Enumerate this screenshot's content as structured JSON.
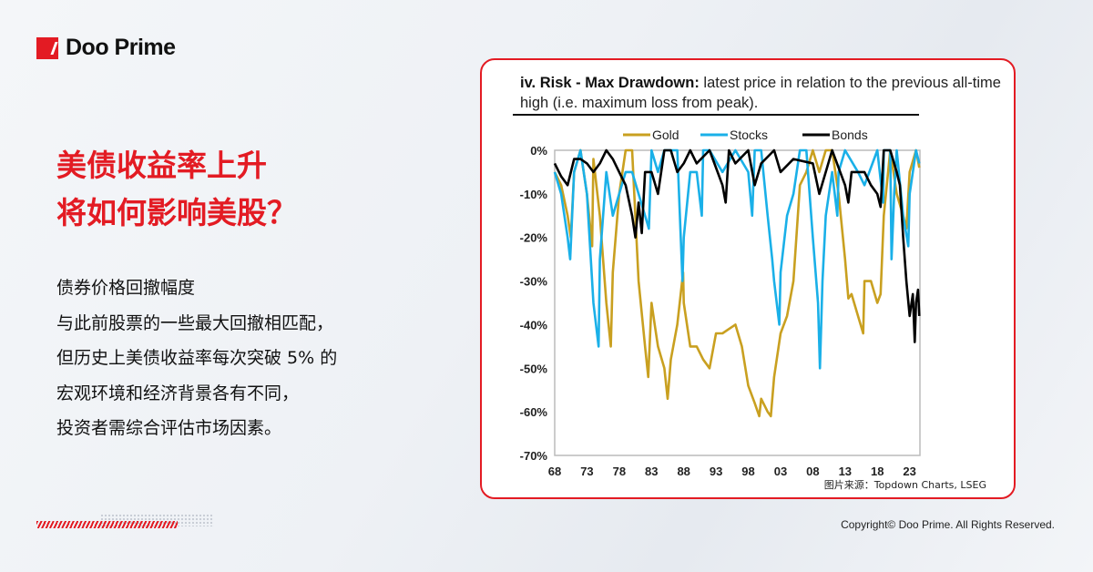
{
  "brand": {
    "name": "Doo Prime"
  },
  "headline": {
    "line1": "美债收益率上升",
    "line2": "将如何影响美股？"
  },
  "body": {
    "lines": [
      "债券价格回撤幅度",
      "与此前股票的一些最大回撤相匹配，",
      "但历史上美债收益率每次突破 5% 的",
      "宏观环境和经济背景各有不同，",
      "投资者需综合评估市场因素。"
    ]
  },
  "source": "图片来源：Topdown Charts, LSEG",
  "copyright": "Copyright© Doo Prime. All Rights Reserved.",
  "colors": {
    "brand": "#e31b23",
    "gold": "#c9a020",
    "stocks": "#1ab0e8",
    "bonds": "#000000"
  },
  "chart_data": {
    "type": "line",
    "title_bold": "iv. Risk - Max Drawdown:",
    "title_rest": " latest price in relation to the previous all-time high (i.e. maximum loss from peak).",
    "legend_position": "top",
    "ylim": [
      -70,
      0
    ],
    "xlim": [
      1968,
      2024.5
    ],
    "y_ticks": [
      "0%",
      "-10%",
      "-20%",
      "-30%",
      "-40%",
      "-50%",
      "-60%",
      "-70%"
    ],
    "y_tick_values": [
      0,
      -10,
      -20,
      -30,
      -40,
      -50,
      -60,
      -70
    ],
    "x_ticks": [
      "68",
      "73",
      "78",
      "83",
      "88",
      "93",
      "98",
      "03",
      "08",
      "13",
      "18",
      "23"
    ],
    "x_tick_values": [
      1968,
      1973,
      1978,
      1983,
      1988,
      1993,
      1998,
      2003,
      2008,
      2013,
      2018,
      2023
    ],
    "grid": false,
    "series": [
      {
        "name": "Gold",
        "color": "#c9a020",
        "x": [
          1968,
          1969,
          1970,
          1970.5,
          1971,
          1972,
          1973,
          1973.8,
          1974,
          1975,
          1975.5,
          1976,
          1976.7,
          1977,
          1978,
          1979,
          1980,
          1981,
          1982,
          1982.5,
          1983,
          1983.5,
          1984,
          1985,
          1985.5,
          1986,
          1987,
          1987.9,
          1988,
          1989,
          1990,
          1991,
          1992,
          1993,
          1994,
          1995,
          1996,
          1997,
          1998,
          1999,
          1999.7,
          2000,
          2001,
          2001.5,
          2002,
          2003,
          2004,
          2005,
          2006,
          2007,
          2008,
          2009,
          2010,
          2011,
          2012,
          2013,
          2013.5,
          2014,
          2015,
          2015.8,
          2016,
          2017,
          2018,
          2018.5,
          2019,
          2020,
          2021,
          2022,
          2022.5,
          2023,
          2024,
          2024.5
        ],
        "y": [
          -5,
          -8,
          -15,
          -20,
          -5,
          0,
          -10,
          -22,
          -2,
          -15,
          -25,
          -35,
          -45,
          -28,
          -10,
          0,
          0,
          -30,
          -45,
          -52,
          -35,
          -40,
          -45,
          -50,
          -57,
          -48,
          -40,
          -28,
          -35,
          -45,
          -45,
          -48,
          -50,
          -42,
          -42,
          -41,
          -40,
          -45,
          -54,
          -58,
          -61,
          -57,
          -60,
          -61,
          -52,
          -42,
          -38,
          -30,
          -8,
          -5,
          0,
          -5,
          0,
          0,
          -10,
          -25,
          -34,
          -33,
          -38,
          -42,
          -30,
          -30,
          -35,
          -33,
          -15,
          0,
          -10,
          -15,
          -18,
          -5,
          0,
          -4
        ]
      },
      {
        "name": "Stocks",
        "color": "#1ab0e8",
        "x": [
          1968,
          1969,
          1970,
          1970.4,
          1971,
          1972,
          1973,
          1974,
          1974.8,
          1975,
          1976,
          1977,
          1978,
          1979,
          1980,
          1981,
          1982,
          1982.6,
          1983,
          1984,
          1985,
          1986,
          1987,
          1987.8,
          1988,
          1989,
          1990,
          1990.8,
          1991,
          1992,
          1994,
          1996,
          1998,
          1998.6,
          1999,
          2000,
          2001,
          2001.7,
          2002,
          2002.8,
          2003,
          2004,
          2005,
          2006,
          2007,
          2008,
          2008.8,
          2009.1,
          2009.5,
          2010,
          2011,
          2011.8,
          2012,
          2013,
          2015,
          2016,
          2018,
          2018.9,
          2019,
          2020,
          2020.2,
          2020.6,
          2021,
          2022,
          2022.8,
          2023,
          2024,
          2024.5
        ],
        "y": [
          -5,
          -10,
          -20,
          -25,
          -5,
          0,
          -10,
          -35,
          -45,
          -25,
          -5,
          -15,
          -10,
          -5,
          -5,
          -10,
          -15,
          -18,
          0,
          -5,
          0,
          0,
          0,
          -30,
          -20,
          -5,
          -5,
          -15,
          0,
          0,
          -5,
          0,
          -5,
          -15,
          0,
          0,
          -15,
          -25,
          -30,
          -40,
          -28,
          -15,
          -10,
          0,
          0,
          -20,
          -35,
          -50,
          -30,
          -15,
          -5,
          -15,
          -5,
          0,
          -5,
          -8,
          0,
          -12,
          0,
          0,
          -25,
          -10,
          0,
          -15,
          -22,
          -10,
          0,
          -3
        ]
      },
      {
        "name": "Bonds",
        "color": "#000000",
        "x": [
          1968,
          1969,
          1970,
          1971,
          1972,
          1973,
          1974,
          1975,
          1976,
          1977,
          1978,
          1979,
          1980,
          1980.5,
          1981,
          1981.5,
          1982,
          1983,
          1984,
          1985,
          1986,
          1987,
          1988,
          1989,
          1990,
          1992,
          1994,
          1994.5,
          1995,
          1996,
          1998,
          1999,
          2000,
          2002,
          2003,
          2005,
          2008,
          2009,
          2010,
          2011,
          2013,
          2013.5,
          2014,
          2016,
          2017,
          2018,
          2018.5,
          2019,
          2020,
          2021,
          2021.5,
          2022,
          2022.5,
          2023,
          2023.5,
          2023.8,
          2024,
          2024.3,
          2024.5
        ],
        "y": [
          -3,
          -6,
          -8,
          -2,
          -2,
          -3,
          -5,
          -3,
          0,
          -2,
          -5,
          -8,
          -15,
          -20,
          -12,
          -19,
          -5,
          -5,
          -10,
          0,
          0,
          -5,
          -3,
          0,
          -3,
          0,
          -8,
          -12,
          0,
          -3,
          0,
          -8,
          -3,
          0,
          -5,
          -2,
          -3,
          -10,
          -5,
          0,
          -8,
          -12,
          -5,
          -5,
          -8,
          -10,
          -13,
          0,
          0,
          -5,
          -8,
          -20,
          -30,
          -38,
          -33,
          -44,
          -35,
          -32,
          -38
        ]
      }
    ]
  }
}
